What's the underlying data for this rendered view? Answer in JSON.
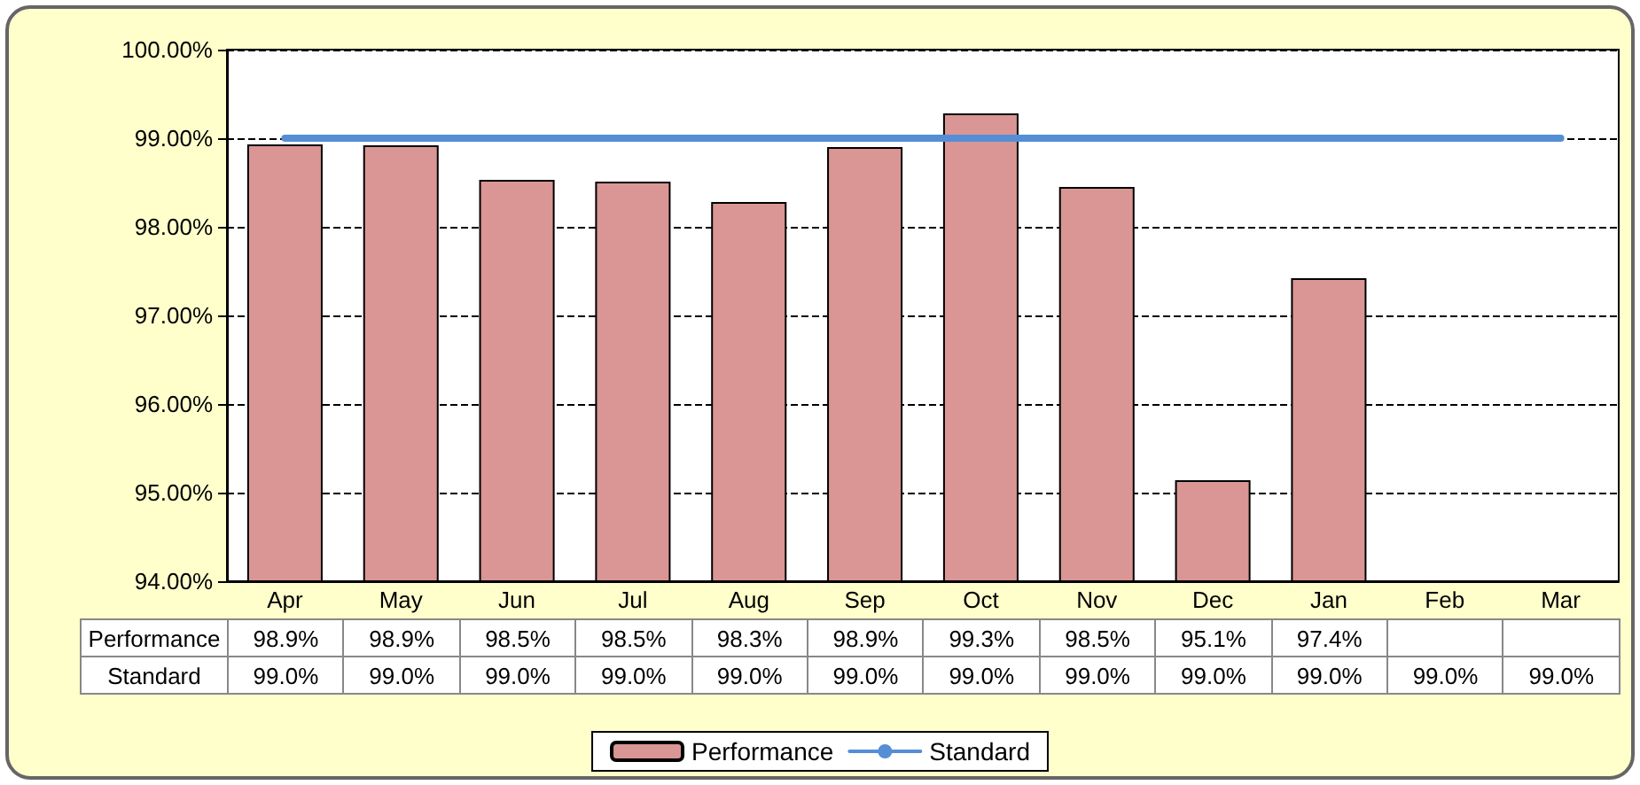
{
  "chart_data": {
    "type": "bar",
    "categories": [
      "Apr",
      "May",
      "Jun",
      "Jul",
      "Aug",
      "Sep",
      "Oct",
      "Nov",
      "Dec",
      "Jan",
      "Feb",
      "Mar"
    ],
    "series": [
      {
        "name": "Performance",
        "color": "#d99694",
        "values": [
          98.93,
          98.92,
          98.53,
          98.51,
          98.28,
          98.9,
          99.28,
          98.45,
          95.14,
          97.42,
          null,
          null
        ],
        "value_labels": [
          "98.9%",
          "98.9%",
          "98.5%",
          "98.5%",
          "98.3%",
          "98.9%",
          "99.3%",
          "98.5%",
          "95.1%",
          "97.4%",
          null,
          null
        ]
      },
      {
        "name": "Standard",
        "type": "line",
        "color": "#558ed5",
        "values": [
          99.0,
          99.0,
          99.0,
          99.0,
          99.0,
          99.0,
          99.0,
          99.0,
          99.0,
          99.0,
          99.0,
          99.0
        ],
        "value_labels": [
          "99.0%",
          "99.0%",
          "99.0%",
          "99.0%",
          "99.0%",
          "99.0%",
          "99.0%",
          "99.0%",
          "99.0%",
          "99.0%",
          "99.0%",
          "99.0%"
        ]
      }
    ],
    "ylim": [
      94,
      100
    ],
    "yticks": [
      {
        "value": 94,
        "label": "94.00%"
      },
      {
        "value": 95,
        "label": "95.00%"
      },
      {
        "value": 96,
        "label": "96.00%"
      },
      {
        "value": 97,
        "label": "97.00%"
      },
      {
        "value": 98,
        "label": "98.00%"
      },
      {
        "value": 99,
        "label": "99.00%"
      },
      {
        "value": 100,
        "label": "100.00%"
      }
    ],
    "grid": "y",
    "legend": "bottom",
    "marker": "none",
    "line_style": "solid"
  }
}
